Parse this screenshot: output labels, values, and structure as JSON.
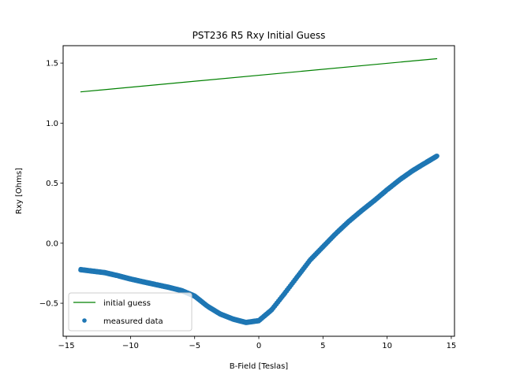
{
  "chart_data": {
    "type": "scatter",
    "title": "PST236 R5 Rxy Initial Guess",
    "xlabel": "B-Field [Teslas]",
    "ylabel": "Rxy [Ohms]",
    "xlim": [
      -15.25,
      15.25
    ],
    "ylim": [
      -0.775,
      1.645
    ],
    "xticks": [
      -15,
      -10,
      -5,
      0,
      5,
      10,
      15
    ],
    "xtick_labels": [
      "−15",
      "−10",
      "−5",
      "0",
      "5",
      "10",
      "15"
    ],
    "yticks": [
      -0.5,
      0.0,
      0.5,
      1.0,
      1.5
    ],
    "ytick_labels": [
      "−0.5",
      "0.0",
      "0.5",
      "1.0",
      "1.5"
    ],
    "grid": false,
    "legend_position": "lower-left",
    "colors": {
      "initial_guess": "#008000",
      "measured_data": "#1f77b4"
    },
    "series": [
      {
        "name": "initial guess",
        "kind": "line",
        "x": [
          -13.9,
          13.9
        ],
        "y": [
          1.26,
          1.537
        ]
      },
      {
        "name": "measured data",
        "kind": "scatter",
        "x": [
          -13.9,
          -13.0,
          -12.0,
          -11.0,
          -10.0,
          -9.0,
          -8.0,
          -7.0,
          -6.0,
          -5.0,
          -4.0,
          -3.0,
          -2.0,
          -1.0,
          0.0,
          1.0,
          2.0,
          3.0,
          4.0,
          5.0,
          6.0,
          7.0,
          8.0,
          9.0,
          10.0,
          11.0,
          12.0,
          13.0,
          13.9
        ],
        "y": [
          -0.22,
          -0.232,
          -0.245,
          -0.27,
          -0.298,
          -0.322,
          -0.345,
          -0.368,
          -0.395,
          -0.44,
          -0.525,
          -0.59,
          -0.632,
          -0.66,
          -0.645,
          -0.555,
          -0.42,
          -0.28,
          -0.14,
          -0.03,
          0.08,
          0.18,
          0.27,
          0.355,
          0.445,
          0.53,
          0.605,
          0.67,
          0.727
        ]
      }
    ]
  }
}
